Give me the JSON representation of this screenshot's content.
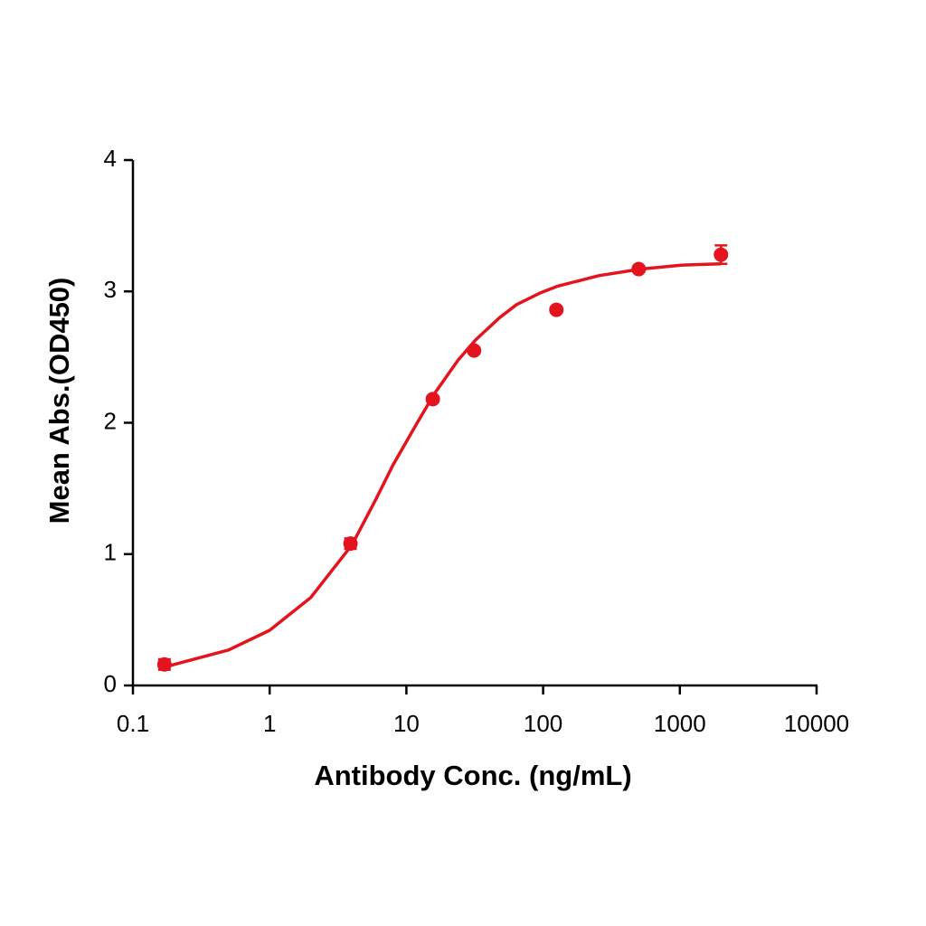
{
  "chart_data": {
    "type": "scatter",
    "xlabel": "Antibody Conc. (ng/mL)",
    "ylabel": "Mean Abs.(OD450)",
    "xscale": "log",
    "xlim": [
      0.1,
      10000
    ],
    "xticks": [
      0.1,
      1,
      10,
      100,
      1000,
      10000
    ],
    "ylim": [
      0,
      4
    ],
    "yticks": [
      0,
      1,
      2,
      3,
      4
    ],
    "color": "#e3141d",
    "points": {
      "x": [
        0.17,
        3.9,
        15.6,
        31.25,
        125,
        500,
        2000
      ],
      "values": [
        0.16,
        1.08,
        2.18,
        2.55,
        2.86,
        3.17,
        3.28
      ],
      "errors": [
        0.04,
        0.04,
        0.02,
        0.02,
        0.02,
        0.02,
        0.07
      ]
    },
    "fit": {
      "x": [
        0.17,
        0.5,
        1,
        2,
        4,
        6,
        8,
        12,
        16,
        24,
        32,
        48,
        64,
        96,
        128,
        256,
        512,
        1024,
        2000
      ],
      "values": [
        0.14,
        0.27,
        0.42,
        0.67,
        1.07,
        1.42,
        1.68,
        2.0,
        2.22,
        2.48,
        2.63,
        2.8,
        2.9,
        2.99,
        3.04,
        3.12,
        3.17,
        3.2,
        3.21
      ]
    }
  }
}
